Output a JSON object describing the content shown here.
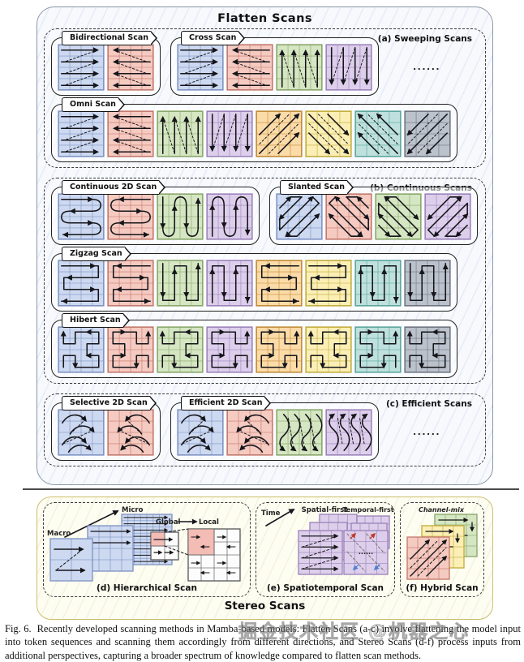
{
  "figure": {
    "title": "Flatten Scans",
    "stereo_title": "Stereo Scans",
    "palette": {
      "blue": {
        "fill": "#cdd9f0",
        "stroke": "#7d92c4"
      },
      "red": {
        "fill": "#f5cac1",
        "stroke": "#c3766a"
      },
      "green": {
        "fill": "#d5e6c2",
        "stroke": "#87a569"
      },
      "purple": {
        "fill": "#ddcfeb",
        "stroke": "#9a80b9"
      },
      "orange": {
        "fill": "#fbdba8",
        "stroke": "#c08a36"
      },
      "yellow": {
        "fill": "#fbefb6",
        "stroke": "#c1ab38"
      },
      "teal": {
        "fill": "#bfe1dd",
        "stroke": "#58a49b"
      },
      "gray": {
        "fill": "#bcc2cc",
        "stroke": "#6c737f"
      }
    },
    "groups": [
      {
        "id": "a",
        "label": "(a) Sweeping Scans",
        "rows": [
          {
            "pills": [
              {
                "label": "Bidirectional Scan",
                "grids": [
                  {
                    "color": "blue",
                    "pattern": "rows-right"
                  },
                  {
                    "color": "red",
                    "pattern": "rows-left"
                  }
                ]
              },
              {
                "label": "Cross Scan",
                "grids": [
                  {
                    "color": "blue",
                    "pattern": "rows-right"
                  },
                  {
                    "color": "red",
                    "pattern": "rows-left"
                  },
                  {
                    "color": "green",
                    "pattern": "cols-up"
                  },
                  {
                    "color": "purple",
                    "pattern": "cols-down"
                  }
                ]
              }
            ],
            "ellipsis": "......"
          },
          {
            "pills": [
              {
                "label": "Omni Scan",
                "grids": [
                  {
                    "color": "blue",
                    "pattern": "rows-right"
                  },
                  {
                    "color": "red",
                    "pattern": "rows-left"
                  },
                  {
                    "color": "green",
                    "pattern": "cols-up"
                  },
                  {
                    "color": "purple",
                    "pattern": "cols-down"
                  },
                  {
                    "color": "orange",
                    "pattern": "diag-ur"
                  },
                  {
                    "color": "yellow",
                    "pattern": "diag-dr"
                  },
                  {
                    "color": "teal",
                    "pattern": "diag-ul"
                  },
                  {
                    "color": "gray",
                    "pattern": "diag-dl"
                  }
                ]
              }
            ]
          }
        ]
      },
      {
        "id": "b",
        "label": "(b) Continuous Scans",
        "rows": [
          {
            "pills": [
              {
                "label": "Continuous 2D Scan",
                "grids": [
                  {
                    "color": "blue",
                    "pattern": "snake-h"
                  },
                  {
                    "color": "red",
                    "pattern": "snake-h-rev"
                  },
                  {
                    "color": "green",
                    "pattern": "snake-v"
                  },
                  {
                    "color": "purple",
                    "pattern": "snake-v-rev"
                  }
                ]
              },
              {
                "label": "Slanted Scan",
                "grids": [
                  {
                    "color": "blue",
                    "pattern": "slant-a"
                  },
                  {
                    "color": "red",
                    "pattern": "slant-b"
                  },
                  {
                    "color": "green",
                    "pattern": "slant-c"
                  },
                  {
                    "color": "purple",
                    "pattern": "slant-d"
                  }
                ]
              }
            ]
          },
          {
            "pills": [
              {
                "label": "Zigzag Scan",
                "grids": [
                  {
                    "color": "blue",
                    "pattern": "zig-h"
                  },
                  {
                    "color": "red",
                    "pattern": "zig-h-rev"
                  },
                  {
                    "color": "green",
                    "pattern": "zig-v"
                  },
                  {
                    "color": "purple",
                    "pattern": "zig-v-rev"
                  },
                  {
                    "color": "orange",
                    "pattern": "zig-h-rev"
                  },
                  {
                    "color": "yellow",
                    "pattern": "zig-h"
                  },
                  {
                    "color": "teal",
                    "pattern": "zig-v-rev"
                  },
                  {
                    "color": "gray",
                    "pattern": "zig-v"
                  }
                ]
              }
            ]
          },
          {
            "pills": [
              {
                "label": "Hibert Scan",
                "grids": [
                  {
                    "color": "blue",
                    "pattern": "hilbert"
                  },
                  {
                    "color": "red",
                    "pattern": "hilbert-rev"
                  },
                  {
                    "color": "green",
                    "pattern": "hilbert"
                  },
                  {
                    "color": "purple",
                    "pattern": "hilbert-rev"
                  },
                  {
                    "color": "orange",
                    "pattern": "hilbert-rev"
                  },
                  {
                    "color": "yellow",
                    "pattern": "hilbert"
                  },
                  {
                    "color": "teal",
                    "pattern": "hilbert-rev"
                  },
                  {
                    "color": "gray",
                    "pattern": "hilbert"
                  }
                ]
              }
            ]
          }
        ]
      },
      {
        "id": "c",
        "label": "(c) Efficient Scans",
        "rows": [
          {
            "pills": [
              {
                "label": "Selective 2D Scan",
                "grids": [
                  {
                    "color": "blue",
                    "pattern": "curves"
                  },
                  {
                    "color": "red",
                    "pattern": "curves-rev"
                  }
                ]
              },
              {
                "label": "Efficient 2D Scan",
                "grids": [
                  {
                    "color": "blue",
                    "pattern": "curves"
                  },
                  {
                    "color": "red",
                    "pattern": "curves-rev"
                  },
                  {
                    "color": "green",
                    "pattern": "curls-v"
                  },
                  {
                    "color": "purple",
                    "pattern": "curls-v-rev"
                  }
                ]
              }
            ],
            "ellipsis": "......"
          }
        ]
      }
    ],
    "stereo": {
      "panels": [
        {
          "id": "d",
          "caption": "(d) Hierarchical Scan",
          "labels": {
            "macro": "Macro",
            "micro": "Micro",
            "global": "Global",
            "local": "Local"
          }
        },
        {
          "id": "e",
          "caption": "(e) Spatiotemporal Scan",
          "labels": {
            "time": "Time",
            "spatial": "Spatial-first",
            "temporal": "Temporal-first",
            "dots": "......"
          }
        },
        {
          "id": "f",
          "caption": "(f) Hybrid Scan",
          "labels": {
            "channel": "Channel-mix"
          }
        }
      ]
    }
  },
  "caption": {
    "text": "Fig. 6.  Recently developed scanning methods in Mamba-based models: Flatten Scans (a-c) involve flattening the model input into token sequences and scanning them accordingly from different directions, and Stereo Scans (d-f) process inputs from additional perspectives, capturing a broader spectrum of knowledge compared to flatten scan methods."
  },
  "watermark": {
    "text": "掘金技术社区 @机器之心"
  }
}
